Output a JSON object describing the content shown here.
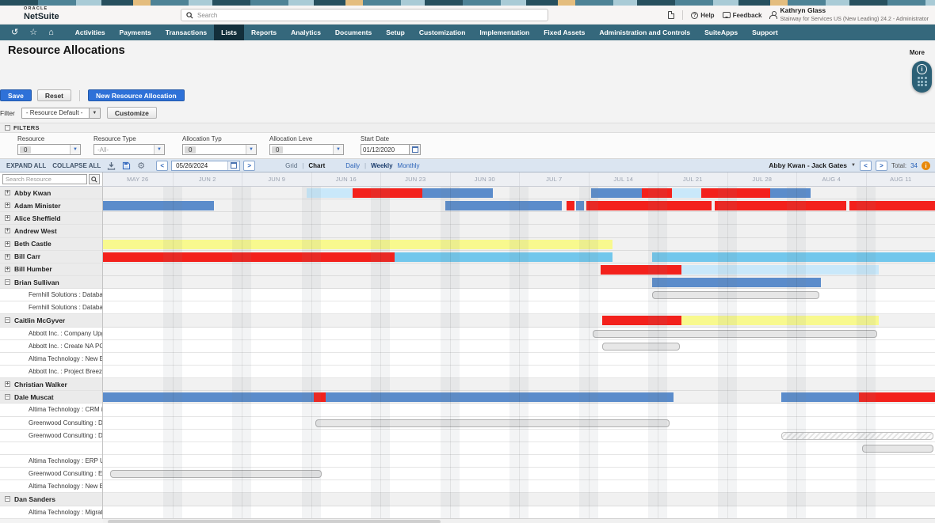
{
  "header": {
    "brand_top": "ORACLE",
    "brand_bottom": "NetSuite",
    "search_placeholder": "Search",
    "help_label": "Help",
    "feedback_label": "Feedback",
    "user_name": "Kathryn Glass",
    "user_subtitle": "Stairway for Services US (New Leading) 24.2 - Administrator"
  },
  "nav": {
    "items": [
      "Activities",
      "Payments",
      "Transactions",
      "Lists",
      "Reports",
      "Analytics",
      "Documents",
      "Setup",
      "Customization",
      "Implementation",
      "Fixed Assets",
      "Administration and Controls",
      "SuiteApps",
      "Support"
    ],
    "active": "Lists"
  },
  "page": {
    "title": "Resource Allocations",
    "more_label": "More"
  },
  "actions": {
    "save": "Save",
    "reset": "Reset",
    "new_allocation": "New Resource Allocation"
  },
  "filter_bar": {
    "label": "Filter",
    "value": "- Resource Default -",
    "customize": "Customize"
  },
  "filters": {
    "title": "FILTERS",
    "fields": [
      {
        "label": "Resource",
        "value": "0",
        "chip": true
      },
      {
        "label": "Resource Type",
        "value": "-All-",
        "chip": false
      },
      {
        "label": "Allocation Typ",
        "value": "0",
        "chip": true
      },
      {
        "label": "Allocation Leve",
        "value": "0",
        "chip": true
      },
      {
        "label": "Start Date",
        "value": "01/12/2020",
        "date": true
      }
    ]
  },
  "gantt_toolbar": {
    "expand_all": "EXPAND ALL",
    "collapse_all": "COLLAPSE ALL",
    "date": "05/26/2024",
    "view_grid": "Grid",
    "view_chart": "Chart",
    "period_daily": "Daily",
    "period_weekly": "Weekly",
    "period_monthly": "Monthly",
    "active_view": "Chart",
    "active_period": "Weekly",
    "range_selector": "Abby Kwan - Jack Gates",
    "total_label": "Total:",
    "total_value": "34"
  },
  "sidebar": {
    "search_placeholder": "Search Resource"
  },
  "icons": {
    "recent-icon": "↺",
    "shortcuts-star-icon": "☆",
    "home-icon": "⌂",
    "download-icon": "⤓",
    "save-disk-icon": "▤",
    "gear-icon": "⚙",
    "prev-icon": "<",
    "next-icon": ">",
    "dropdown-arrow-icon": "▾",
    "search-icon": "magnifier",
    "calendar-icon": "calendar",
    "info-icon": "i",
    "help-icon": "?",
    "feedback-icon": "speech-bubble",
    "user-icon": "person",
    "document-icon": "page"
  },
  "chart_data": {
    "type": "gantt",
    "period": "Weekly",
    "weeks": [
      "MAY 26",
      "JUN 2",
      "JUN 9",
      "JUN 16",
      "JUN 23",
      "JUN 30",
      "JUL 7",
      "JUL 14",
      "JUL 21",
      "JUL 28",
      "AUG 4",
      "AUG 11"
    ],
    "axis_unit_weeks": 12,
    "colors": {
      "blue": "#5b8ccb",
      "red": "#f3211c",
      "sky": "#72c7ec",
      "pale": "#c9e8fa",
      "yellow": "#f8f98e",
      "outline": "#e7e7e7"
    },
    "rows": [
      {
        "name": "Abby Kwan",
        "kind": "resource",
        "expanded": false,
        "bars": [
          {
            "s": 2.94,
            "e": 3.6,
            "c": "pale"
          },
          {
            "s": 3.6,
            "e": 4.6,
            "c": "red"
          },
          {
            "s": 4.6,
            "e": 5.62,
            "c": "blue"
          },
          {
            "s": 7.04,
            "e": 7.77,
            "c": "blue"
          },
          {
            "s": 7.77,
            "e": 8.2,
            "c": "red"
          },
          {
            "s": 8.2,
            "e": 8.63,
            "c": "pale"
          },
          {
            "s": 8.63,
            "e": 9.62,
            "c": "red"
          },
          {
            "s": 9.62,
            "e": 10.2,
            "c": "blue"
          }
        ]
      },
      {
        "name": "Adam Minister",
        "kind": "resource",
        "expanded": false,
        "bars": [
          {
            "s": 0,
            "e": 1.6,
            "c": "blue"
          },
          {
            "s": 4.94,
            "e": 6.62,
            "c": "blue"
          },
          {
            "s": 6.68,
            "e": 6.8,
            "c": "red"
          },
          {
            "s": 6.82,
            "e": 6.94,
            "c": "blue"
          },
          {
            "s": 6.97,
            "e": 8.78,
            "c": "red"
          },
          {
            "s": 8.82,
            "e": 10.72,
            "c": "red"
          },
          {
            "s": 10.76,
            "e": 12,
            "c": "red"
          }
        ]
      },
      {
        "name": "Alice Sheffield",
        "kind": "resource",
        "expanded": false,
        "bars": []
      },
      {
        "name": "Andrew West",
        "kind": "resource",
        "expanded": false,
        "bars": []
      },
      {
        "name": "Beth Castle",
        "kind": "resource",
        "expanded": false,
        "bars": [
          {
            "s": 0,
            "e": 7.35,
            "c": "yellow"
          }
        ]
      },
      {
        "name": "Bill Carr",
        "kind": "resource",
        "expanded": false,
        "bars": [
          {
            "s": 0,
            "e": 4.2,
            "c": "red"
          },
          {
            "s": 4.2,
            "e": 7.35,
            "c": "sky"
          },
          {
            "s": 7.92,
            "e": 12,
            "c": "sky"
          }
        ]
      },
      {
        "name": "Bill Humber",
        "kind": "resource",
        "expanded": false,
        "bars": [
          {
            "s": 7.18,
            "e": 8.34,
            "c": "red"
          },
          {
            "s": 8.34,
            "e": 11.19,
            "c": "pale"
          }
        ]
      },
      {
        "name": "Brian Sullivan",
        "kind": "resource",
        "expanded": true,
        "bars": [
          {
            "s": 7.92,
            "e": 10.35,
            "c": "blue"
          }
        ]
      },
      {
        "name": "Fernhill Solutions : Database ...",
        "kind": "task",
        "bars": [
          {
            "s": 7.92,
            "e": 10.35,
            "c": "outline"
          }
        ]
      },
      {
        "name": "Fernhill Solutions : Database ...",
        "kind": "task",
        "bars": []
      },
      {
        "name": "Caitlin McGyver",
        "kind": "resource",
        "expanded": true,
        "bars": [
          {
            "s": 7.2,
            "e": 8.34,
            "c": "red"
          },
          {
            "s": 8.34,
            "e": 11.19,
            "c": "yellow"
          }
        ]
      },
      {
        "name": "Abbott Inc. : Company Upgrade",
        "kind": "task",
        "bars": [
          {
            "s": 7.06,
            "e": 11.19,
            "c": "outline"
          }
        ]
      },
      {
        "name": "Abbott Inc. : Create NA POD (...",
        "kind": "task",
        "bars": [
          {
            "s": 7.2,
            "e": 8.34,
            "c": "outline"
          }
        ]
      },
      {
        "name": "Altima Technology : New ERP ...",
        "kind": "task",
        "bars": []
      },
      {
        "name": "Abbott Inc. : Project Breeze",
        "kind": "task",
        "bars": []
      },
      {
        "name": "Christian Walker",
        "kind": "resource",
        "expanded": false,
        "bars": []
      },
      {
        "name": "Dale Muscat",
        "kind": "resource",
        "expanded": true,
        "bars": [
          {
            "s": 0,
            "e": 3.04,
            "c": "blue"
          },
          {
            "s": 3.04,
            "e": 3.21,
            "c": "red"
          },
          {
            "s": 3.21,
            "e": 8.23,
            "c": "blue"
          },
          {
            "s": 9.78,
            "e": 10.9,
            "c": "blue"
          },
          {
            "s": 10.9,
            "e": 12,
            "c": "red"
          }
        ]
      },
      {
        "name": "Altima Technology : CRM impl...",
        "kind": "task",
        "bars": []
      },
      {
        "name": "Greenwood Consulting : Data ...",
        "kind": "task",
        "bars": [
          {
            "s": 3.06,
            "e": 8.19,
            "c": "outline"
          }
        ]
      },
      {
        "name": "Greenwood Consulting : Data ...",
        "kind": "task",
        "bars": [
          {
            "s": 9.78,
            "e": 12,
            "c": "hatch"
          }
        ]
      },
      {
        "name": "",
        "kind": "task",
        "bars": [
          {
            "s": 10.95,
            "e": 12,
            "c": "outline"
          }
        ]
      },
      {
        "name": "Altima Technology : ERP Upgr...",
        "kind": "task",
        "bars": []
      },
      {
        "name": "Greenwood Consulting : ERP ...",
        "kind": "task",
        "bars": [
          {
            "s": 0.1,
            "e": 3.18,
            "c": "outline"
          }
        ]
      },
      {
        "name": "Altima Technology : New ERP ...",
        "kind": "task",
        "bars": []
      },
      {
        "name": "Dan Sanders",
        "kind": "resource",
        "expanded": true,
        "bars": []
      },
      {
        "name": "Altima Technology : Migrate o...",
        "kind": "task",
        "bars": []
      }
    ]
  }
}
